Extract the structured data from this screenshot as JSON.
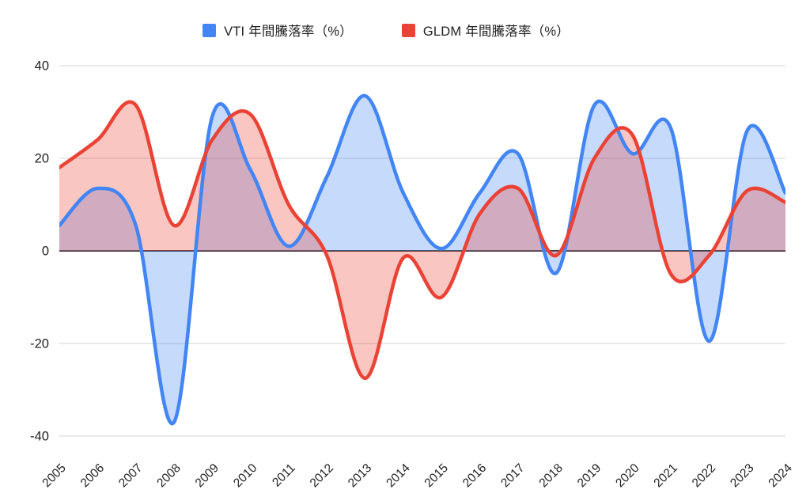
{
  "chart_data": {
    "type": "area",
    "title": "",
    "categories": [
      "2005",
      "2006",
      "2007",
      "2008",
      "2009",
      "2010",
      "2011",
      "2012",
      "2013",
      "2014",
      "2015",
      "2016",
      "2017",
      "2018",
      "2019",
      "2020",
      "2021",
      "2022",
      "2023",
      "2024"
    ],
    "series": [
      {
        "name": "VTI 年間騰落率（%）",
        "color": "#4285F4",
        "fill_opacity": 0.3,
        "values": [
          5.5,
          13.5,
          5.5,
          -37,
          29,
          17.5,
          1,
          16,
          33.5,
          12.5,
          0.5,
          12.5,
          21,
          -4.8,
          31.5,
          21,
          26.5,
          -19.5,
          26,
          12.5
        ]
      },
      {
        "name": "GLDM 年間騰落率（%）",
        "color": "#EA4335",
        "fill_opacity": 0.3,
        "values": [
          18,
          24,
          31.5,
          5.5,
          24,
          29.5,
          10,
          -1,
          -27.5,
          -1.5,
          -10,
          8,
          13.5,
          -1,
          20,
          25,
          -5,
          -1,
          13,
          10.5
        ]
      }
    ],
    "xlabel": "",
    "ylabel": "",
    "ylim": [
      -40,
      40
    ],
    "yticks": [
      40,
      20,
      0,
      -20,
      -40
    ],
    "ytick_labels": [
      "40",
      "20",
      "0",
      "-20",
      "-40"
    ],
    "grid": true,
    "smooth": true,
    "legend_position": "top",
    "colors": {
      "gridline": "#e0e0e0",
      "zero_line": "#424242",
      "axis_label": "#212121",
      "background": "#ffffff"
    }
  }
}
